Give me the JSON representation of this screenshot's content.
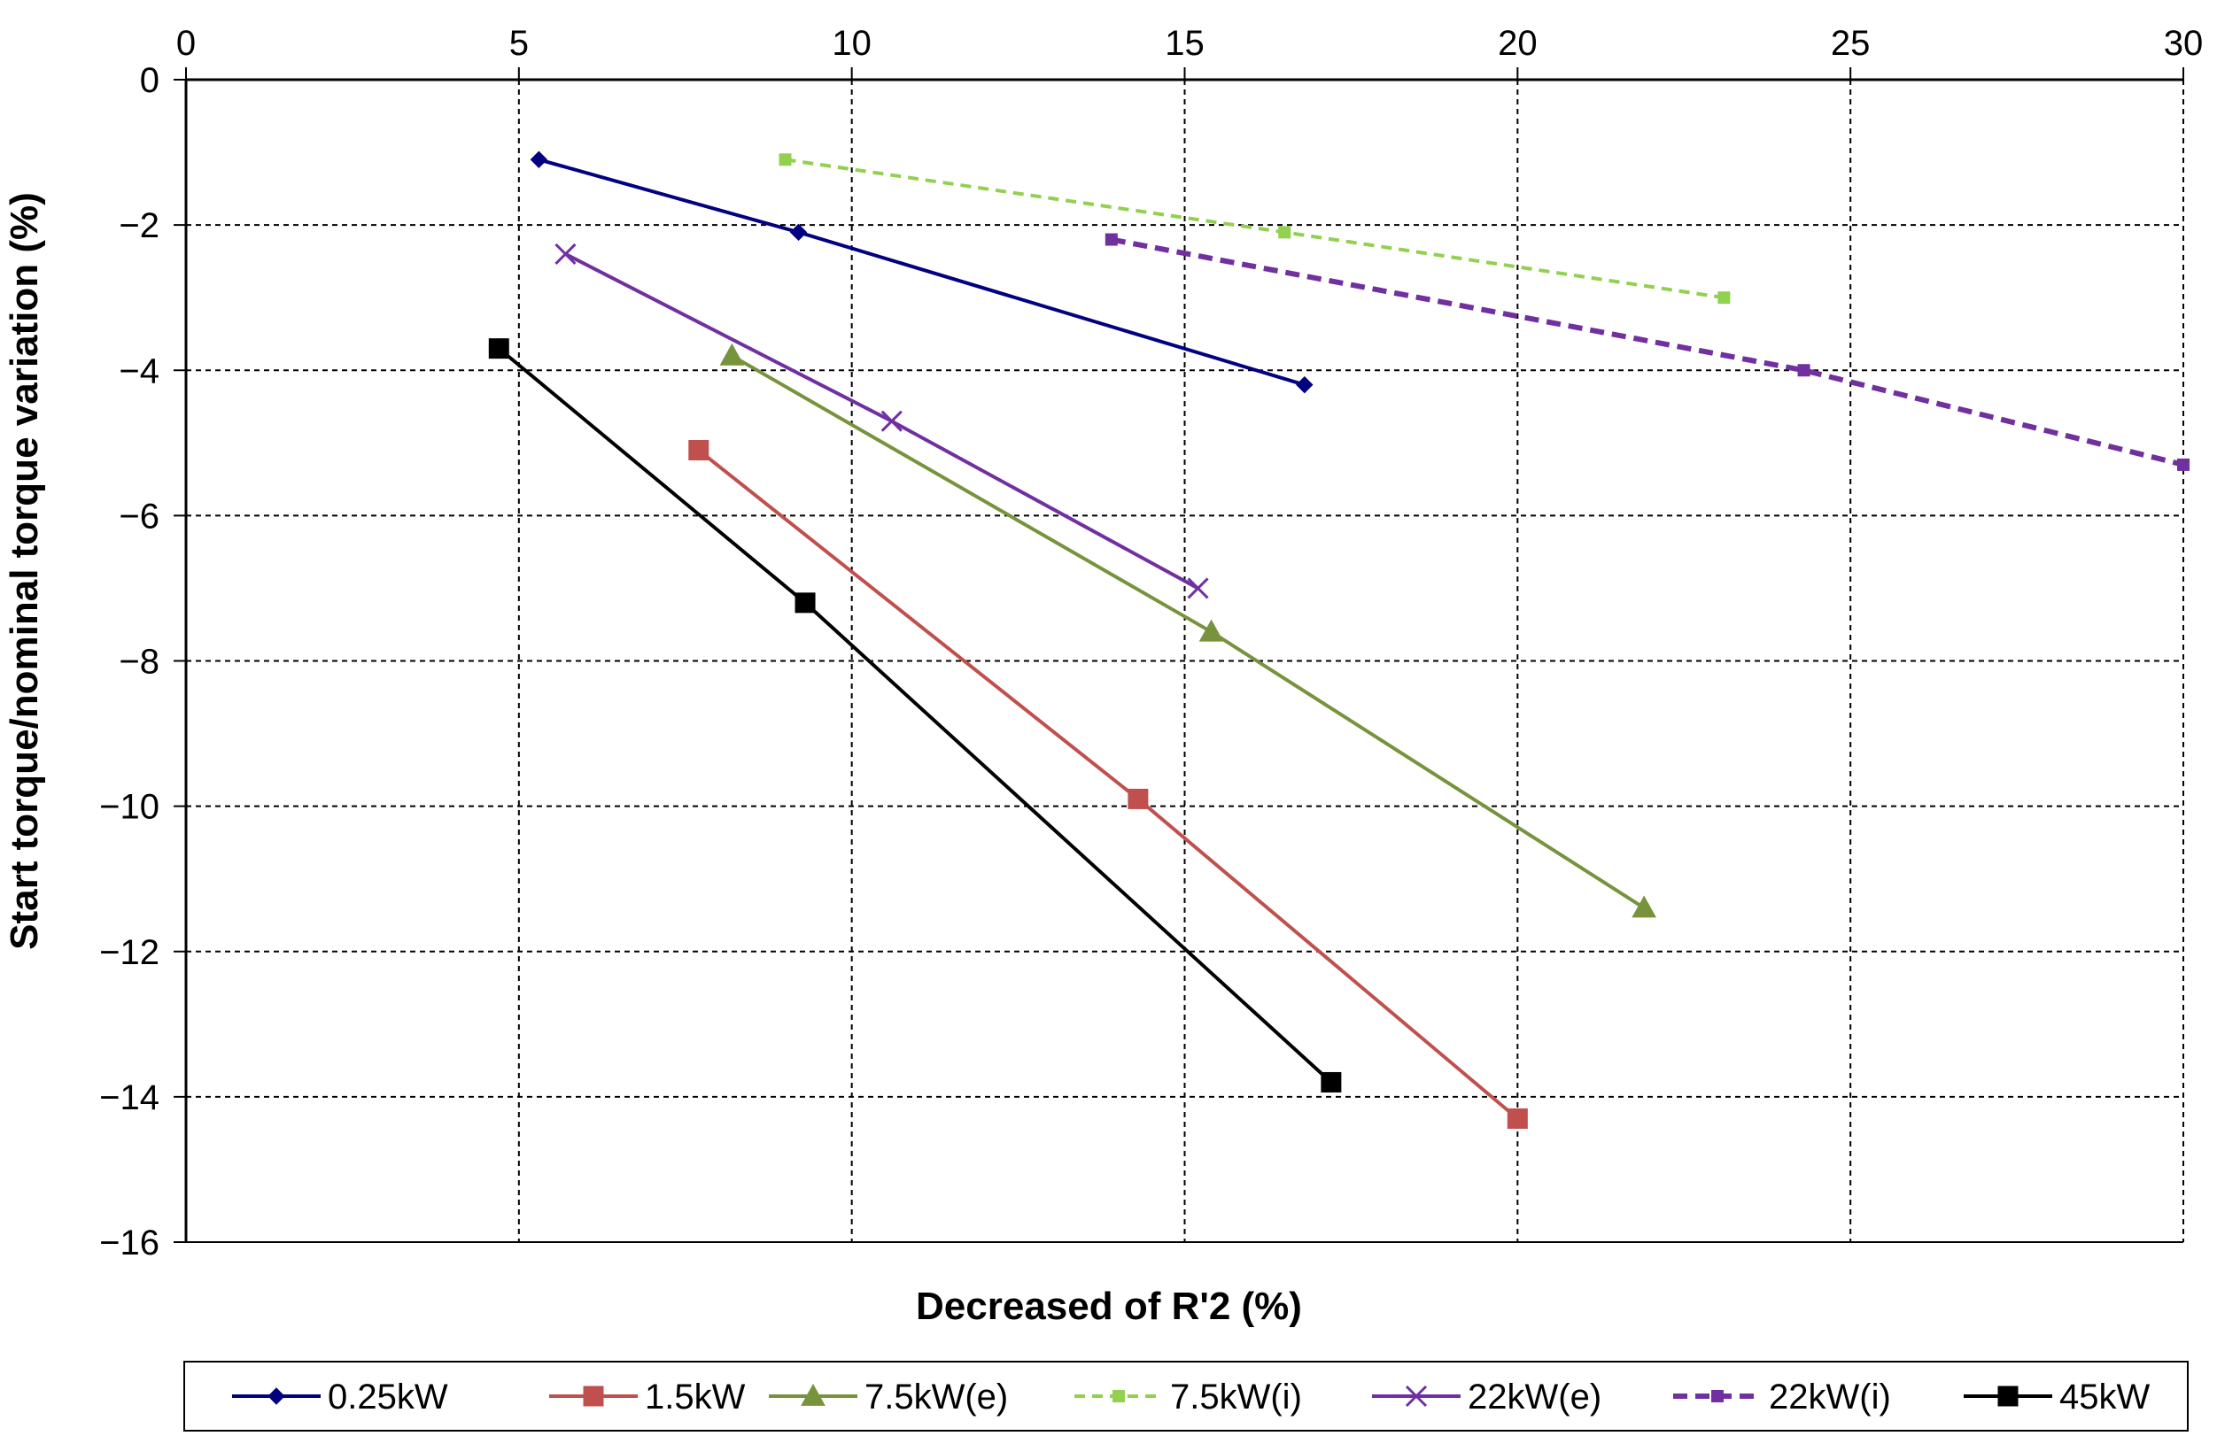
{
  "chart_data": {
    "type": "line",
    "title": "",
    "xlabel": "Decreased of R'2 (%)",
    "ylabel": "Start torque/nominal torque  variation (%)",
    "xlim": [
      0,
      30
    ],
    "ylim": [
      -16,
      0
    ],
    "x_ticks": [
      "0",
      "5",
      "10",
      "15",
      "20",
      "25",
      "30"
    ],
    "y_ticks": [
      "0",
      "−2",
      "−4",
      "−6",
      "−8",
      "−10",
      "−12",
      "−14",
      "−16"
    ],
    "x_axis_position": "top",
    "grid": true,
    "legend_position": "bottom",
    "series": [
      {
        "name": "0.25kW",
        "color": "#000080",
        "marker": "diamond",
        "dash": "solid",
        "width": 4,
        "x": [
          5.3,
          9.2,
          16.8
        ],
        "y": [
          -1.1,
          -2.1,
          -4.2
        ]
      },
      {
        "name": "1.5kW",
        "color": "#C0504D",
        "marker": "square",
        "dash": "solid",
        "width": 4,
        "x": [
          7.7,
          14.3,
          20.0
        ],
        "y": [
          -5.1,
          -9.9,
          -14.3
        ]
      },
      {
        "name": "7.5kW(e)",
        "color": "#77933C",
        "marker": "triangle",
        "dash": "solid",
        "width": 4,
        "x": [
          8.2,
          15.4,
          21.9
        ],
        "y": [
          -3.8,
          -7.6,
          -11.4
        ]
      },
      {
        "name": "7.5kW(i)",
        "color": "#92D050",
        "marker": "small-square",
        "dash": "dashed",
        "width": 4,
        "x": [
          9.0,
          16.5,
          23.1
        ],
        "y": [
          -1.1,
          -2.1,
          -3.0
        ]
      },
      {
        "name": "22kW(e)",
        "color": "#7030A0",
        "marker": "x",
        "dash": "solid",
        "width": 4,
        "x": [
          5.7,
          10.6,
          15.2
        ],
        "y": [
          -2.4,
          -4.7,
          -7.0
        ]
      },
      {
        "name": "22kW(i)",
        "color": "#7030A0",
        "marker": "small-square",
        "dash": "dashed",
        "width": 6,
        "x": [
          13.9,
          24.3,
          30.0
        ],
        "y": [
          -2.2,
          -4.0,
          -5.3
        ]
      },
      {
        "name": "45kW",
        "color": "#000000",
        "marker": "square",
        "dash": "solid",
        "width": 4,
        "x": [
          4.7,
          9.3,
          17.2
        ],
        "y": [
          -3.7,
          -7.2,
          -13.8
        ]
      }
    ]
  }
}
